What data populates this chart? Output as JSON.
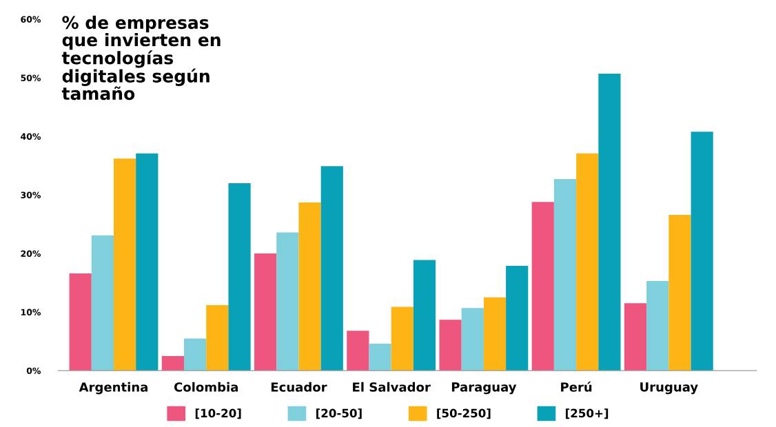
{
  "chart_data": {
    "type": "bar",
    "title": "% de empresas\nque invierten en\ntecnologías\ndigitales según\ntamaño",
    "categories": [
      "Argentina",
      "Colombia",
      "Ecuador",
      "El Salvador",
      "Paraguay",
      "Perú",
      "Uruguay"
    ],
    "series": [
      {
        "name": "[10-20]",
        "color": "#ee5680",
        "values": [
          16.6,
          2.5,
          20.0,
          6.8,
          8.7,
          28.8,
          11.5
        ]
      },
      {
        "name": "[20-50]",
        "color": "#80cfdc",
        "values": [
          23.1,
          5.5,
          23.6,
          4.6,
          10.7,
          32.7,
          15.3
        ]
      },
      {
        "name": "[50-250]",
        "color": "#fdb515",
        "values": [
          36.2,
          11.2,
          28.7,
          10.9,
          12.5,
          37.1,
          26.6
        ]
      },
      {
        "name": "[250+]",
        "color": "#09a1b8",
        "values": [
          37.1,
          32.0,
          34.9,
          18.9,
          17.9,
          50.7,
          40.8
        ]
      }
    ],
    "ylim": [
      0,
      60
    ],
    "yticks": [
      {
        "value": 0,
        "label": "0%"
      },
      {
        "value": 10,
        "label": "10%"
      },
      {
        "value": 20,
        "label": "20%"
      },
      {
        "value": 30,
        "label": "30%"
      },
      {
        "value": 40,
        "label": "40%"
      },
      {
        "value": 50,
        "label": "50%"
      },
      {
        "value": 60,
        "label": "60%"
      }
    ],
    "grid": false,
    "legend": "bottom"
  }
}
